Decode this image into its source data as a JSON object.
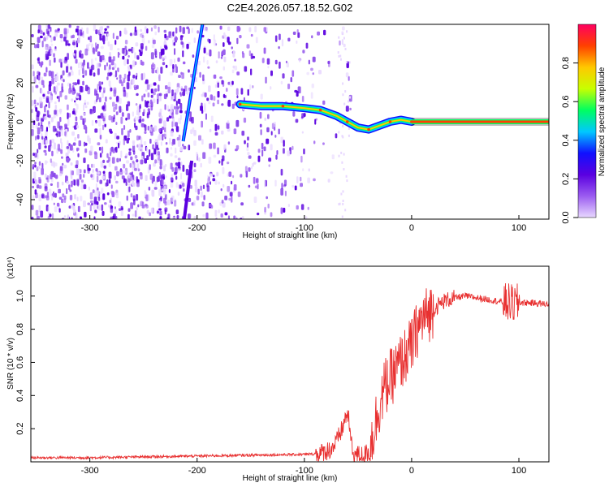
{
  "figure": {
    "title": "C2E4.2026.057.18.52.G02"
  },
  "chart_data": [
    {
      "type": "heatmap",
      "xlabel": "Height of straight line (km)",
      "ylabel": "Frequency (Hz)",
      "xlim": [
        -355,
        128
      ],
      "ylim": [
        -50,
        50
      ],
      "xticks": [
        -300,
        -200,
        -100,
        0,
        100
      ],
      "yticks": [
        -40,
        -20,
        0,
        20,
        40
      ],
      "colorbar": {
        "label": "Normalized spectral amplitude",
        "range": [
          0,
          1
        ],
        "ticks": [
          0.0,
          0.2,
          0.4,
          0.6,
          0.8
        ],
        "tick_labels": [
          "0.0",
          "0.2",
          "0.4",
          "0.6",
          "0.8"
        ],
        "colors": [
          "#e8d8ff",
          "#9b5cf0",
          "#5a00e0",
          "#1010ff",
          "#00c8ff",
          "#00ff60",
          "#c8ff00",
          "#ffc800",
          "#ff4000",
          "#ff0060"
        ]
      },
      "features": {
        "noise_region_x": [
          -355,
          -55
        ],
        "noise_dense_x": [
          -355,
          -215
        ],
        "streak": {
          "x": [
            -213,
            -195
          ],
          "y": [
            -10,
            50
          ]
        },
        "lower_streak": {
          "x": [
            -212,
            -205
          ],
          "y": [
            -50,
            -20
          ]
        },
        "signal_track": {
          "x": [
            -160,
            -140,
            -120,
            -100,
            -85,
            -70,
            -60,
            -50,
            -40,
            -30,
            -20,
            -10,
            0
          ],
          "y": [
            9,
            8,
            8,
            7,
            6,
            3,
            0,
            -3,
            -4,
            -2,
            0,
            1,
            0
          ]
        },
        "carrier_x": [
          0,
          128
        ],
        "carrier_y": 0
      }
    },
    {
      "type": "line",
      "xlabel": "Height of straight line (km)",
      "ylabel": "SNR (10 * v/v)",
      "y_multiplier": "(x10⁴)",
      "xlim": [
        -355,
        128
      ],
      "ylim": [
        0,
        1.18
      ],
      "xticks": [
        -300,
        -200,
        -100,
        0,
        100
      ],
      "yticks": [
        0.2,
        0.4,
        0.6,
        0.8,
        1.0
      ],
      "ytick_labels": [
        "0.2",
        "0.4",
        "0.6",
        "0.8",
        "1.0"
      ],
      "series": [
        {
          "color": "#e83030",
          "x": [
            -355,
            -300,
            -250,
            -200,
            -150,
            -100,
            -85,
            -75,
            -70,
            -65,
            -60,
            -55,
            -50,
            -45,
            -40,
            -35,
            -30,
            -25,
            -20,
            -15,
            -10,
            -5,
            0,
            5,
            10,
            20,
            30,
            40,
            50,
            60,
            70,
            80,
            85,
            90,
            95,
            100,
            110,
            128
          ],
          "y": [
            0.025,
            0.025,
            0.03,
            0.035,
            0.04,
            0.045,
            0.05,
            0.08,
            0.12,
            0.2,
            0.3,
            0.05,
            0.04,
            0.04,
            0.06,
            0.2,
            0.35,
            0.45,
            0.5,
            0.55,
            0.6,
            0.65,
            0.7,
            0.8,
            0.86,
            0.92,
            0.97,
            0.99,
            1.0,
            0.99,
            0.98,
            0.97,
            0.96,
            0.96,
            0.95,
            0.96,
            0.96,
            0.95
          ]
        }
      ]
    }
  ]
}
